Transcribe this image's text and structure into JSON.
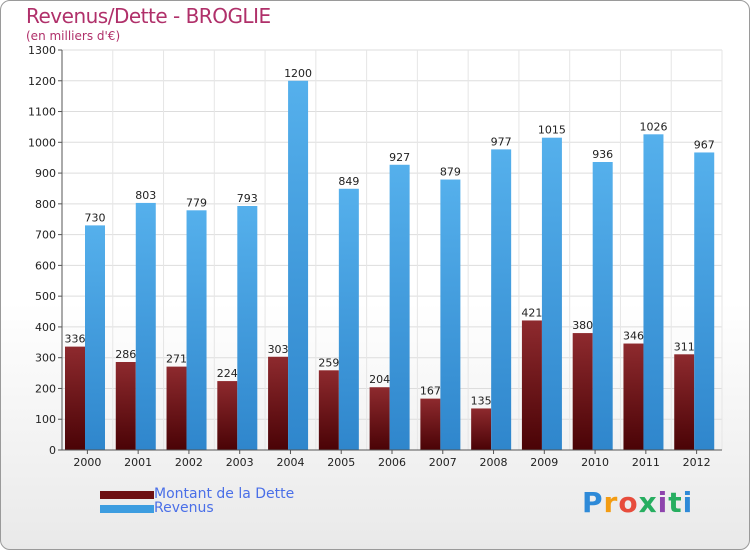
{
  "title": "Revenus/Dette - BROGLIE",
  "subtitle": "(en milliers d'€)",
  "logo": "Proxiti",
  "colors": {
    "debt": "#6e0f12",
    "revenue": "#3d9de0",
    "title": "#b0306a",
    "legend_text": "#4a6fe8"
  },
  "chart_data": {
    "type": "bar",
    "title": "Revenus/Dette - BROGLIE",
    "ylabel": "(en milliers d'€)",
    "ylim": [
      0,
      1300
    ],
    "yticks": [
      0,
      100,
      200,
      300,
      400,
      500,
      600,
      700,
      800,
      900,
      1000,
      1100,
      1200,
      1300
    ],
    "grid": true,
    "legend_position": "bottom-left",
    "categories": [
      "2000",
      "2001",
      "2002",
      "2003",
      "2004",
      "2005",
      "2006",
      "2007",
      "2008",
      "2009",
      "2010",
      "2011",
      "2012"
    ],
    "series": [
      {
        "name": "Montant de la Dette",
        "values": [
          336,
          286,
          271,
          224,
          303,
          259,
          204,
          167,
          135,
          421,
          380,
          346,
          311
        ]
      },
      {
        "name": "Revenus",
        "values": [
          730,
          803,
          779,
          793,
          1200,
          849,
          927,
          879,
          977,
          1015,
          936,
          1026,
          967
        ]
      }
    ]
  }
}
